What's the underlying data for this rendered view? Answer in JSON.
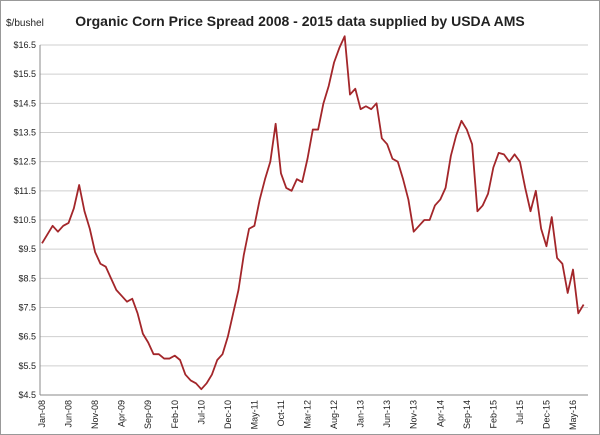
{
  "chart_data": {
    "type": "line",
    "title": "Organic Corn Price Spread 2008 - 2015 data supplied by USDA AMS",
    "y_label": "$/bushel",
    "categories": [
      "Jan-08",
      null,
      null,
      null,
      null,
      "Jun-08",
      null,
      null,
      null,
      null,
      "Nov-08",
      null,
      null,
      null,
      null,
      "Apr-09",
      null,
      null,
      null,
      null,
      "Sep-09",
      null,
      null,
      null,
      null,
      "Feb-10",
      null,
      null,
      null,
      null,
      "Jul-10",
      null,
      null,
      null,
      null,
      "Dec-10",
      null,
      null,
      null,
      null,
      "May-11",
      null,
      null,
      null,
      null,
      "Oct-11",
      null,
      null,
      null,
      null,
      "Mar-12",
      null,
      null,
      null,
      null,
      "Aug-12",
      null,
      null,
      null,
      null,
      "Jan-13",
      null,
      null,
      null,
      null,
      "Jun-13",
      null,
      null,
      null,
      null,
      "Nov-13",
      null,
      null,
      null,
      null,
      "Apr-14",
      null,
      null,
      null,
      null,
      "Sep-14",
      null,
      null,
      null,
      null,
      "Feb-15",
      null,
      null,
      null,
      null,
      "Jul-15",
      null,
      null,
      null,
      null,
      "Dec-15",
      null,
      null,
      null,
      null,
      "May-16",
      null,
      null
    ],
    "series": [
      {
        "color": "#a3262a",
        "values": [
          9.7,
          10.0,
          10.3,
          10.1,
          10.3,
          10.4,
          10.9,
          11.7,
          10.8,
          10.2,
          9.4,
          9.0,
          8.9,
          8.5,
          8.1,
          7.9,
          7.7,
          7.8,
          7.3,
          6.6,
          6.3,
          5.9,
          5.9,
          5.75,
          5.75,
          5.85,
          5.7,
          5.2,
          5.0,
          4.9,
          4.7,
          4.9,
          5.2,
          5.7,
          5.9,
          6.5,
          7.3,
          8.1,
          9.3,
          10.2,
          10.3,
          11.2,
          11.9,
          12.5,
          13.8,
          12.1,
          11.6,
          11.5,
          11.9,
          11.8,
          12.6,
          13.6,
          13.6,
          14.5,
          15.1,
          15.9,
          16.4,
          16.8,
          14.8,
          15.0,
          14.3,
          14.4,
          14.3,
          14.5,
          13.3,
          13.1,
          12.6,
          12.5,
          11.9,
          11.2,
          10.1,
          10.3,
          10.5,
          10.5,
          11.0,
          11.2,
          11.6,
          12.7,
          13.4,
          13.9,
          13.6,
          13.1,
          10.8,
          11.0,
          11.4,
          12.3,
          12.8,
          12.75,
          12.5,
          12.75,
          12.5,
          11.6,
          10.8,
          11.5,
          10.2,
          9.6,
          10.6,
          9.2,
          9.0,
          8.0,
          8.8,
          7.3,
          7.6
        ]
      }
    ],
    "ylim": [
      4.5,
      16.5
    ],
    "yticks": [
      {
        "value": 4.5,
        "label": "$4.5"
      },
      {
        "value": 5.5,
        "label": "$5.5"
      },
      {
        "value": 6.5,
        "label": "$6.5"
      },
      {
        "value": 7.5,
        "label": "$7.5"
      },
      {
        "value": 8.5,
        "label": "$8.5"
      },
      {
        "value": 9.5,
        "label": "$9.5"
      },
      {
        "value": 10.5,
        "label": "$10.5"
      },
      {
        "value": 11.5,
        "label": "$11.5"
      },
      {
        "value": 12.5,
        "label": "$12.5"
      },
      {
        "value": 13.5,
        "label": "$13.5"
      },
      {
        "value": 14.5,
        "label": "$14.5"
      },
      {
        "value": 15.5,
        "label": "$15.5"
      },
      {
        "value": 16.5,
        "label": "$16.5"
      }
    ],
    "grid": true
  }
}
